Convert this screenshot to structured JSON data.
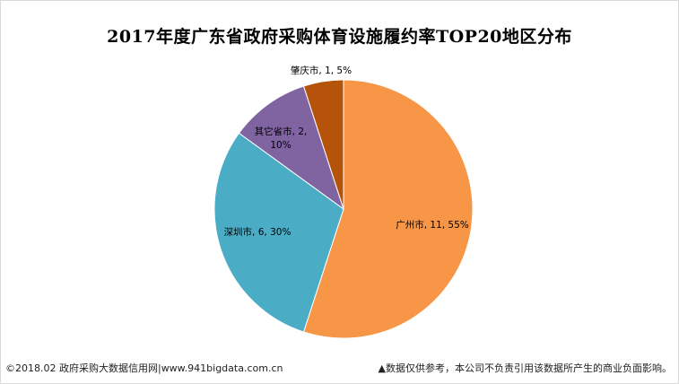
{
  "chart_data": {
    "type": "pie",
    "title": "2017年度广东省政府采购体育设施履约率TOP20地区分布",
    "slices": [
      {
        "name": "广州市",
        "value": 11,
        "percent": "55%",
        "label": "广州市, 11, 55%",
        "color": "#F79646"
      },
      {
        "name": "深圳市",
        "value": 6,
        "percent": "30%",
        "label": "深圳市, 6, 30%",
        "color": "#4BACC6"
      },
      {
        "name": "其它省市",
        "value": 2,
        "percent": "10%",
        "label_lines": [
          "其它省市, 2,",
          "10%"
        ],
        "color": "#8064A2"
      },
      {
        "name": "肇庆市",
        "value": 1,
        "percent": "5%",
        "label": "肇庆市, 1, 5%",
        "color": "#B45309"
      }
    ]
  },
  "footer": {
    "left": "©2018.02 政府采购大数据信用网|www.941bigdata.com.cn",
    "right": "▲数据仅供参考，本公司不负责引用该数据所产生的商业负面影响。"
  }
}
